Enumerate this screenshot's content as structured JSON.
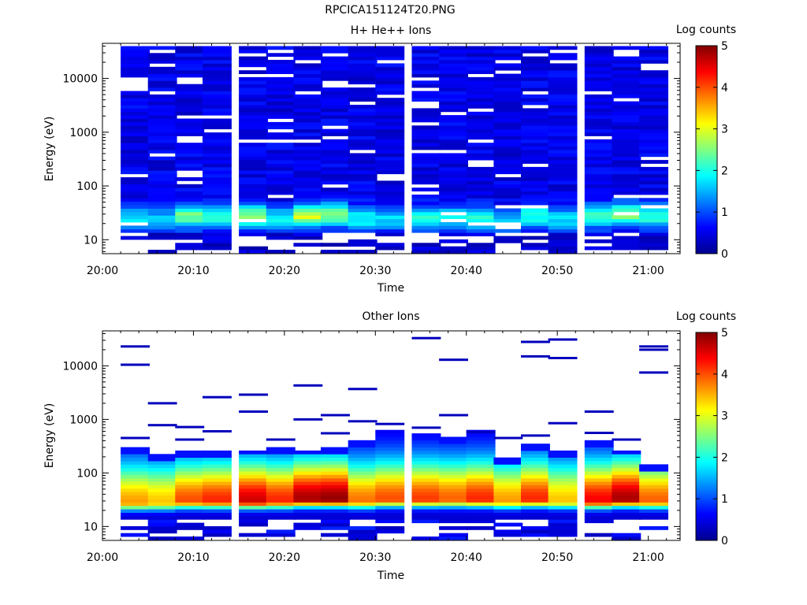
{
  "page": {
    "title": "RPCICA151124T20.PNG"
  },
  "chart_data": [
    {
      "type": "heatmap",
      "title": "H+ He++ Ions",
      "xlabel": "Time",
      "ylabel": "Energy (eV)",
      "x_ticks": [
        "20:00",
        "20:10",
        "20:20",
        "20:30",
        "20:40",
        "20:50",
        "21:00"
      ],
      "y_ticks": [
        "10",
        "100",
        "1000",
        "10000"
      ],
      "y_scale": "log",
      "ylim": [
        5.5,
        45000
      ],
      "colorbar": {
        "label": "Log counts",
        "ticks": [
          "0",
          "1",
          "2",
          "3",
          "4",
          "5"
        ],
        "range": [
          0,
          5
        ]
      },
      "time_bins": [
        "20:02",
        "20:05",
        "20:08",
        "20:11",
        "20:15",
        "20:18",
        "20:21",
        "20:24",
        "20:27",
        "20:30",
        "20:34",
        "20:37",
        "20:40",
        "20:43",
        "20:46",
        "20:49",
        "20:53",
        "20:56",
        "20:59"
      ],
      "profile": {
        "peak_energy_eV": [
          25,
          25,
          28,
          28,
          28,
          25,
          28,
          30,
          25,
          25,
          25,
          25,
          25,
          22,
          28,
          25,
          28,
          30,
          28
        ],
        "peak_log_counts": [
          1.2,
          1.0,
          2.0,
          1.6,
          2.0,
          1.3,
          2.4,
          2.1,
          1.4,
          1.2,
          1.5,
          1.4,
          1.6,
          1.0,
          1.5,
          1.3,
          1.8,
          2.0,
          1.6
        ],
        "background_log_counts": 0.5
      }
    },
    {
      "type": "heatmap",
      "title": "Other Ions",
      "xlabel": "Time",
      "ylabel": "Energy (eV)",
      "x_ticks": [
        "20:00",
        "20:10",
        "20:20",
        "20:30",
        "20:40",
        "20:50",
        "21:00"
      ],
      "y_ticks": [
        "10",
        "100",
        "1000",
        "10000"
      ],
      "y_scale": "log",
      "ylim": [
        5.5,
        45000
      ],
      "colorbar": {
        "label": "Log counts",
        "ticks": [
          "0",
          "1",
          "2",
          "3",
          "4",
          "5"
        ],
        "range": [
          0,
          5
        ]
      },
      "time_bins": [
        "20:02",
        "20:05",
        "20:08",
        "20:11",
        "20:15",
        "20:18",
        "20:21",
        "20:24",
        "20:27",
        "20:30",
        "20:34",
        "20:37",
        "20:40",
        "20:43",
        "20:46",
        "20:49",
        "20:53",
        "20:56",
        "20:59"
      ],
      "profile": {
        "peak_energy_eV": [
          28,
          28,
          30,
          30,
          30,
          30,
          32,
          32,
          30,
          32,
          32,
          32,
          32,
          30,
          32,
          30,
          30,
          32,
          30
        ],
        "peak_log_counts": [
          3.2,
          3.0,
          3.6,
          3.8,
          4.2,
          3.8,
          4.4,
          4.5,
          3.4,
          3.6,
          3.7,
          3.5,
          3.8,
          3.2,
          3.8,
          3.0,
          4.0,
          4.4,
          3.5
        ],
        "top_energy_eV": [
          300,
          230,
          260,
          250,
          280,
          300,
          280,
          290,
          420,
          650,
          550,
          450,
          600,
          200,
          350,
          260,
          380,
          280,
          150
        ],
        "sparse_high_energy_eV": [
          [
            23000,
            10500,
            450
          ],
          [
            2000,
            780
          ],
          [
            720,
            420
          ],
          [
            600,
            2600
          ],
          [
            1400,
            2900
          ],
          [
            420
          ],
          [
            4300,
            1000
          ],
          [
            1200,
            550
          ],
          [
            3700,
            920
          ],
          [
            820
          ],
          [
            33000,
            700
          ],
          [
            1200,
            13000
          ],
          [
            580
          ],
          [
            450
          ],
          [
            28000,
            15000,
            500
          ],
          [
            31000,
            14000,
            850
          ],
          [
            1400,
            560
          ],
          [
            420
          ],
          [
            23000,
            20000,
            7500
          ]
        ]
      }
    }
  ]
}
